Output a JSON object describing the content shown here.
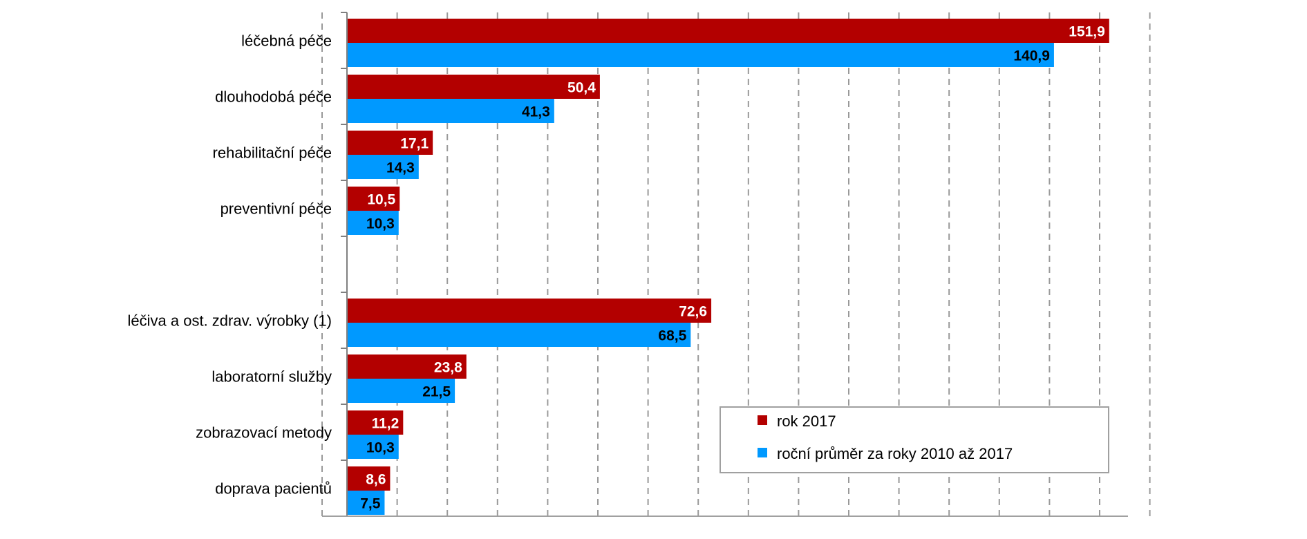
{
  "chart_data": {
    "type": "bar",
    "orientation": "horizontal",
    "title": "",
    "xlabel": "",
    "ylabel": "",
    "xlim": [
      0,
      160
    ],
    "grid": true,
    "legend_position": "bottom-right",
    "categories": [
      "léčebná péče",
      "dlouhodobá péče",
      "rehabilitační péče",
      "preventivní péče",
      "",
      "léčiva a ost. zdrav. výrobky (1)",
      "laboratorní služby",
      "zobrazovací metody",
      "doprava pacientů"
    ],
    "series": [
      {
        "name": "rok 2017",
        "color": "#b30000",
        "label_color": "#ffffff",
        "values": [
          151.9,
          50.4,
          17.1,
          10.5,
          null,
          72.6,
          23.8,
          11.2,
          8.6
        ],
        "labels": [
          "151,9",
          "50,4",
          "17,1",
          "10,5",
          "",
          "72,6",
          "23,8",
          "11,2",
          "8,6"
        ]
      },
      {
        "name": "roční průměr za roky 2010 až 2017",
        "color": "#0099ff",
        "label_color": "#000000",
        "values": [
          140.9,
          41.3,
          14.3,
          10.3,
          null,
          68.5,
          21.5,
          10.3,
          7.5
        ],
        "labels": [
          "140,9",
          "41,3",
          "14,3",
          "10,3",
          "",
          "68,5",
          "21,5",
          "10,3",
          "7,5"
        ]
      }
    ]
  }
}
